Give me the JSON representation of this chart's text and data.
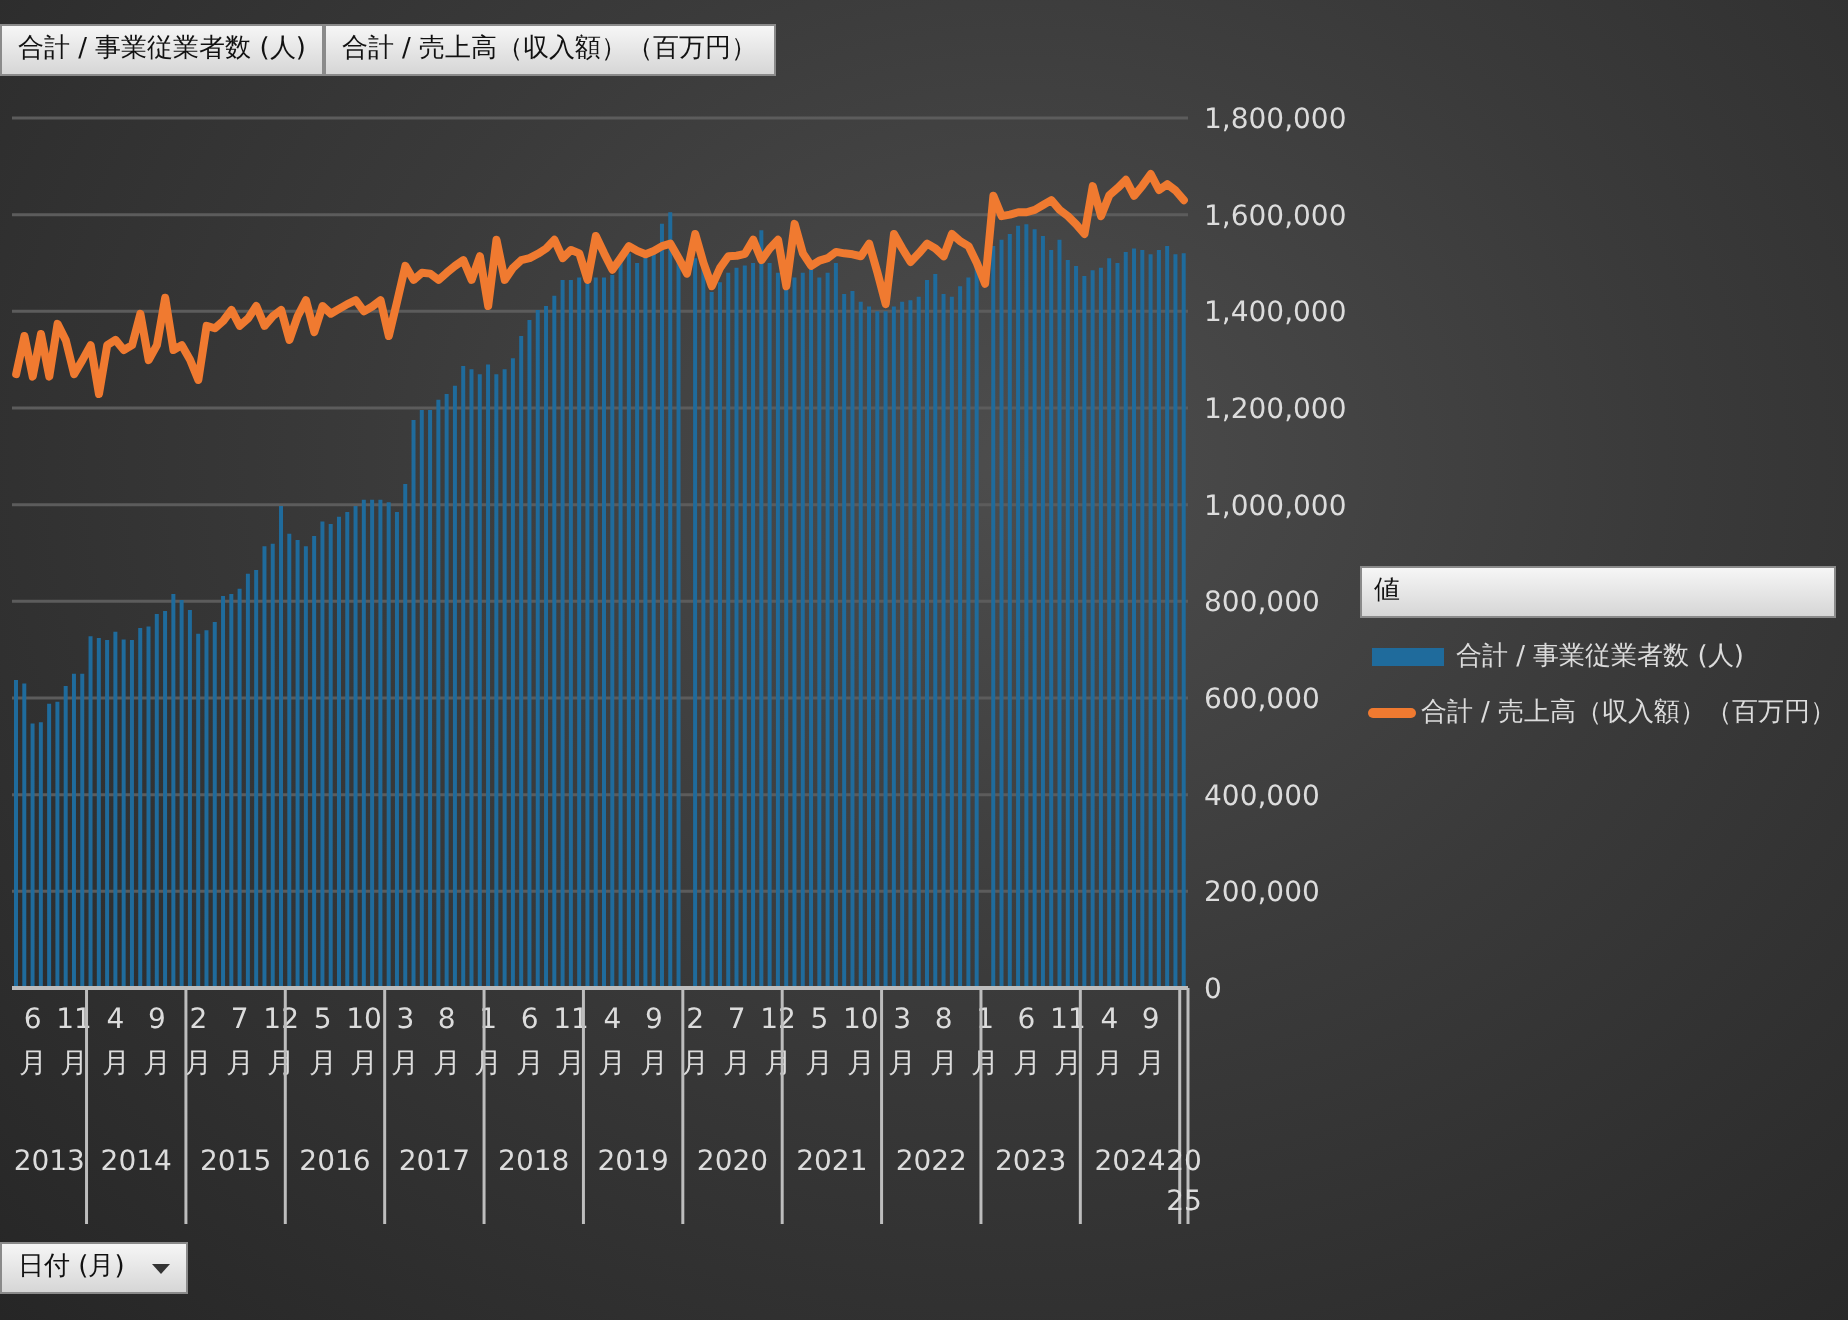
{
  "chart_data": {
    "type": "bar",
    "legend_title": "値",
    "legend": "right",
    "xlim": [
      "2013-04",
      "2025-01"
    ],
    "grid": "y",
    "marker": "none",
    "line_style": "solid",
    "x": [
      "2013-04",
      "2013-05",
      "2013-06",
      "2013-07",
      "2013-08",
      "2013-09",
      "2013-10",
      "2013-11",
      "2013-12",
      "2014-01",
      "2014-02",
      "2014-03",
      "2014-04",
      "2014-05",
      "2014-06",
      "2014-07",
      "2014-08",
      "2014-09",
      "2014-10",
      "2014-11",
      "2014-12",
      "2015-01",
      "2015-02",
      "2015-03",
      "2015-04",
      "2015-05",
      "2015-06",
      "2015-07",
      "2015-08",
      "2015-09",
      "2015-10",
      "2015-11",
      "2015-12",
      "2016-01",
      "2016-02",
      "2016-03",
      "2016-04",
      "2016-05",
      "2016-06",
      "2016-07",
      "2016-08",
      "2016-09",
      "2016-10",
      "2016-11",
      "2016-12",
      "2017-01",
      "2017-02",
      "2017-03",
      "2017-04",
      "2017-05",
      "2017-06",
      "2017-07",
      "2017-08",
      "2017-09",
      "2017-10",
      "2017-11",
      "2017-12",
      "2018-01",
      "2018-02",
      "2018-03",
      "2018-04",
      "2018-05",
      "2018-06",
      "2018-07",
      "2018-08",
      "2018-09",
      "2018-10",
      "2018-11",
      "2018-12",
      "2019-01",
      "2019-02",
      "2019-03",
      "2019-04",
      "2019-05",
      "2019-06",
      "2019-07",
      "2019-08",
      "2019-09",
      "2019-10",
      "2019-11",
      "2019-12",
      "2020-01",
      "2020-02",
      "2020-03",
      "2020-04",
      "2020-05",
      "2020-06",
      "2020-07",
      "2020-08",
      "2020-09",
      "2020-10",
      "2020-11",
      "2020-12",
      "2021-01",
      "2021-02",
      "2021-03",
      "2021-04",
      "2021-05",
      "2021-06",
      "2021-07",
      "2021-08",
      "2021-09",
      "2021-10",
      "2021-11",
      "2021-12",
      "2022-01",
      "2022-02",
      "2022-03",
      "2022-04",
      "2022-05",
      "2022-06",
      "2022-07",
      "2022-08",
      "2022-09",
      "2022-10",
      "2022-11",
      "2022-12",
      "2023-01",
      "2023-02",
      "2023-03",
      "2023-04",
      "2023-05",
      "2023-06",
      "2023-07",
      "2023-08",
      "2023-09",
      "2023-10",
      "2023-11",
      "2023-12",
      "2024-01",
      "2024-02",
      "2024-03",
      "2024-04",
      "2024-05",
      "2024-06",
      "2024-07",
      "2024-08",
      "2024-09",
      "2024-10",
      "2024-11",
      "2024-12",
      "2025-01"
    ],
    "xticks": [
      {
        "value": "2013-06",
        "label": "6月"
      },
      {
        "value": "2013-11",
        "label": "11月"
      },
      {
        "value": "2014-04",
        "label": "4月"
      },
      {
        "value": "2014-09",
        "label": "9月"
      },
      {
        "value": "2015-02",
        "label": "2月"
      },
      {
        "value": "2015-07",
        "label": "7月"
      },
      {
        "value": "2015-12",
        "label": "12月"
      },
      {
        "value": "2016-05",
        "label": "5月"
      },
      {
        "value": "2016-10",
        "label": "10月"
      },
      {
        "value": "2017-03",
        "label": "3月"
      },
      {
        "value": "2017-08",
        "label": "8月"
      },
      {
        "value": "2018-01",
        "label": "1月"
      },
      {
        "value": "2018-06",
        "label": "6月"
      },
      {
        "value": "2018-11",
        "label": "11月"
      },
      {
        "value": "2019-04",
        "label": "4月"
      },
      {
        "value": "2019-09",
        "label": "9月"
      },
      {
        "value": "2020-02",
        "label": "2月"
      },
      {
        "value": "2020-07",
        "label": "7月"
      },
      {
        "value": "2020-12",
        "label": "12月"
      },
      {
        "value": "2021-05",
        "label": "5月"
      },
      {
        "value": "2021-10",
        "label": "10月"
      },
      {
        "value": "2022-03",
        "label": "3月"
      },
      {
        "value": "2022-08",
        "label": "8月"
      },
      {
        "value": "2023-01",
        "label": "1月"
      },
      {
        "value": "2023-06",
        "label": "6月"
      },
      {
        "value": "2023-11",
        "label": "11月"
      },
      {
        "value": "2024-04",
        "label": "4月"
      },
      {
        "value": "2024-09",
        "label": "9月"
      }
    ],
    "annotations": [
      "2013",
      "2014",
      "2015",
      "2016",
      "2017",
      "2018",
      "2019",
      "2020",
      "2021",
      "2022",
      "2023",
      "2024",
      "2025",
      "日付 (月)"
    ],
    "ylim": [
      0,
      1800000
    ],
    "yticks": [
      0,
      {
        "value": 200000,
        "label": "200,000"
      },
      {
        "value": 400000,
        "label": "400,000"
      },
      {
        "value": 600000,
        "label": "600,000"
      },
      {
        "value": 800000,
        "label": "800,000"
      },
      {
        "value": 1000000,
        "label": "1,000,000"
      },
      {
        "value": 1200000,
        "label": "1,200,000"
      },
      {
        "value": 1400000,
        "label": "1,400,000"
      },
      {
        "value": 1600000,
        "label": "1,600,000"
      },
      {
        "value": 1800000,
        "label": "1,800,000"
      }
    ],
    "series": [
      {
        "name": "合計 / 事業従業者数 (人)",
        "color": "#1f6b9c",
        "values": [
          637000,
          630000,
          547000,
          550000,
          588000,
          592000,
          625000,
          650000,
          650000,
          728000,
          724000,
          720000,
          737000,
          721000,
          720000,
          745000,
          748000,
          774000,
          780000,
          815000,
          803000,
          782000,
          733000,
          740000,
          757000,
          811000,
          815000,
          826000,
          857000,
          865000,
          914000,
          919000,
          997000,
          940000,
          927000,
          914000,
          935000,
          965000,
          960000,
          975000,
          985000,
          997000,
          1010000,
          1010000,
          1010000,
          1005000,
          985000,
          1043000,
          1175000,
          1196000,
          1196000,
          1217000,
          1229000,
          1246000,
          1287000,
          1280000,
          1270000,
          1290000,
          1270000,
          1280000,
          1303000,
          1349000,
          1382000,
          1403000,
          1411000,
          1432000,
          1465000,
          1465000,
          1470000,
          1465000,
          1470000,
          1470000,
          1475000,
          1510000,
          1520000,
          1500000,
          1520000,
          1530000,
          1581000,
          1605000,
          1510000,
          null,
          1510000,
          1490000,
          1440000,
          1460000,
          1480000,
          1490000,
          1495000,
          1500000,
          1568000,
          1500000,
          1480000,
          1450000,
          1470000,
          1480000,
          1490000,
          1470000,
          1480000,
          1500000,
          1436000,
          1442000,
          1420000,
          1410000,
          1400000,
          1400000,
          1410000,
          1420000,
          1423000,
          1430000,
          1465000,
          1477000,
          1436000,
          1430000,
          1452000,
          1470000,
          1494000,
          null,
          1535000,
          1548000,
          1560000,
          1577000,
          1580000,
          1570000,
          1556000,
          1527000,
          1548000,
          1506000,
          1494000,
          1473000,
          1485000,
          1490000,
          1510000,
          1500000,
          1523000,
          1530000,
          1527000,
          1518000,
          1527000,
          1535000,
          1518000,
          1520000
        ]
      },
      {
        "name": "合計 / 売上高（収入額）（百万円）",
        "type": "line",
        "color": "#f07a30",
        "values": [
          1270000,
          1349000,
          1265000,
          1353000,
          1265000,
          1374000,
          1340000,
          1270000,
          1299000,
          1330000,
          1229000,
          1330000,
          1341000,
          1320000,
          1330000,
          1395000,
          1299000,
          1330000,
          1428000,
          1320000,
          1330000,
          1300000,
          1258000,
          1370000,
          1365000,
          1380000,
          1403000,
          1370000,
          1385000,
          1411000,
          1370000,
          1390000,
          1403000,
          1341000,
          1390000,
          1423000,
          1357000,
          1411000,
          1395000,
          1405000,
          1415000,
          1423000,
          1400000,
          1410000,
          1423000,
          1349000,
          1420000,
          1494000,
          1465000,
          1480000,
          1478000,
          1465000,
          1480000,
          1494000,
          1506000,
          1465000,
          1514000,
          1411000,
          1548000,
          1465000,
          1490000,
          1506000,
          1510000,
          1519000,
          1530000,
          1548000,
          1510000,
          1527000,
          1520000,
          1465000,
          1556000,
          1520000,
          1486000,
          1510000,
          1535000,
          1525000,
          1518000,
          1525000,
          1535000,
          1540000,
          1510000,
          1478000,
          1560000,
          1500000,
          1452000,
          1490000,
          1514000,
          1515000,
          1519000,
          1548000,
          1506000,
          1530000,
          1548000,
          1452000,
          1581000,
          1520000,
          1494000,
          1505000,
          1510000,
          1523000,
          1520000,
          1518000,
          1514000,
          1540000,
          1480000,
          1415000,
          1560000,
          1530000,
          1502000,
          1520000,
          1540000,
          1530000,
          1514000,
          1560000,
          1545000,
          1535000,
          1500000,
          1457000,
          1639000,
          1597000,
          1600000,
          1605000,
          1605000,
          1610000,
          1620000,
          1630000,
          1610000,
          1597000,
          1580000,
          1560000,
          1659000,
          1597000,
          1640000,
          1655000,
          1672000,
          1639000,
          1660000,
          1684000,
          1651000,
          1663000,
          1650000,
          1630000
        ]
      }
    ]
  }
}
